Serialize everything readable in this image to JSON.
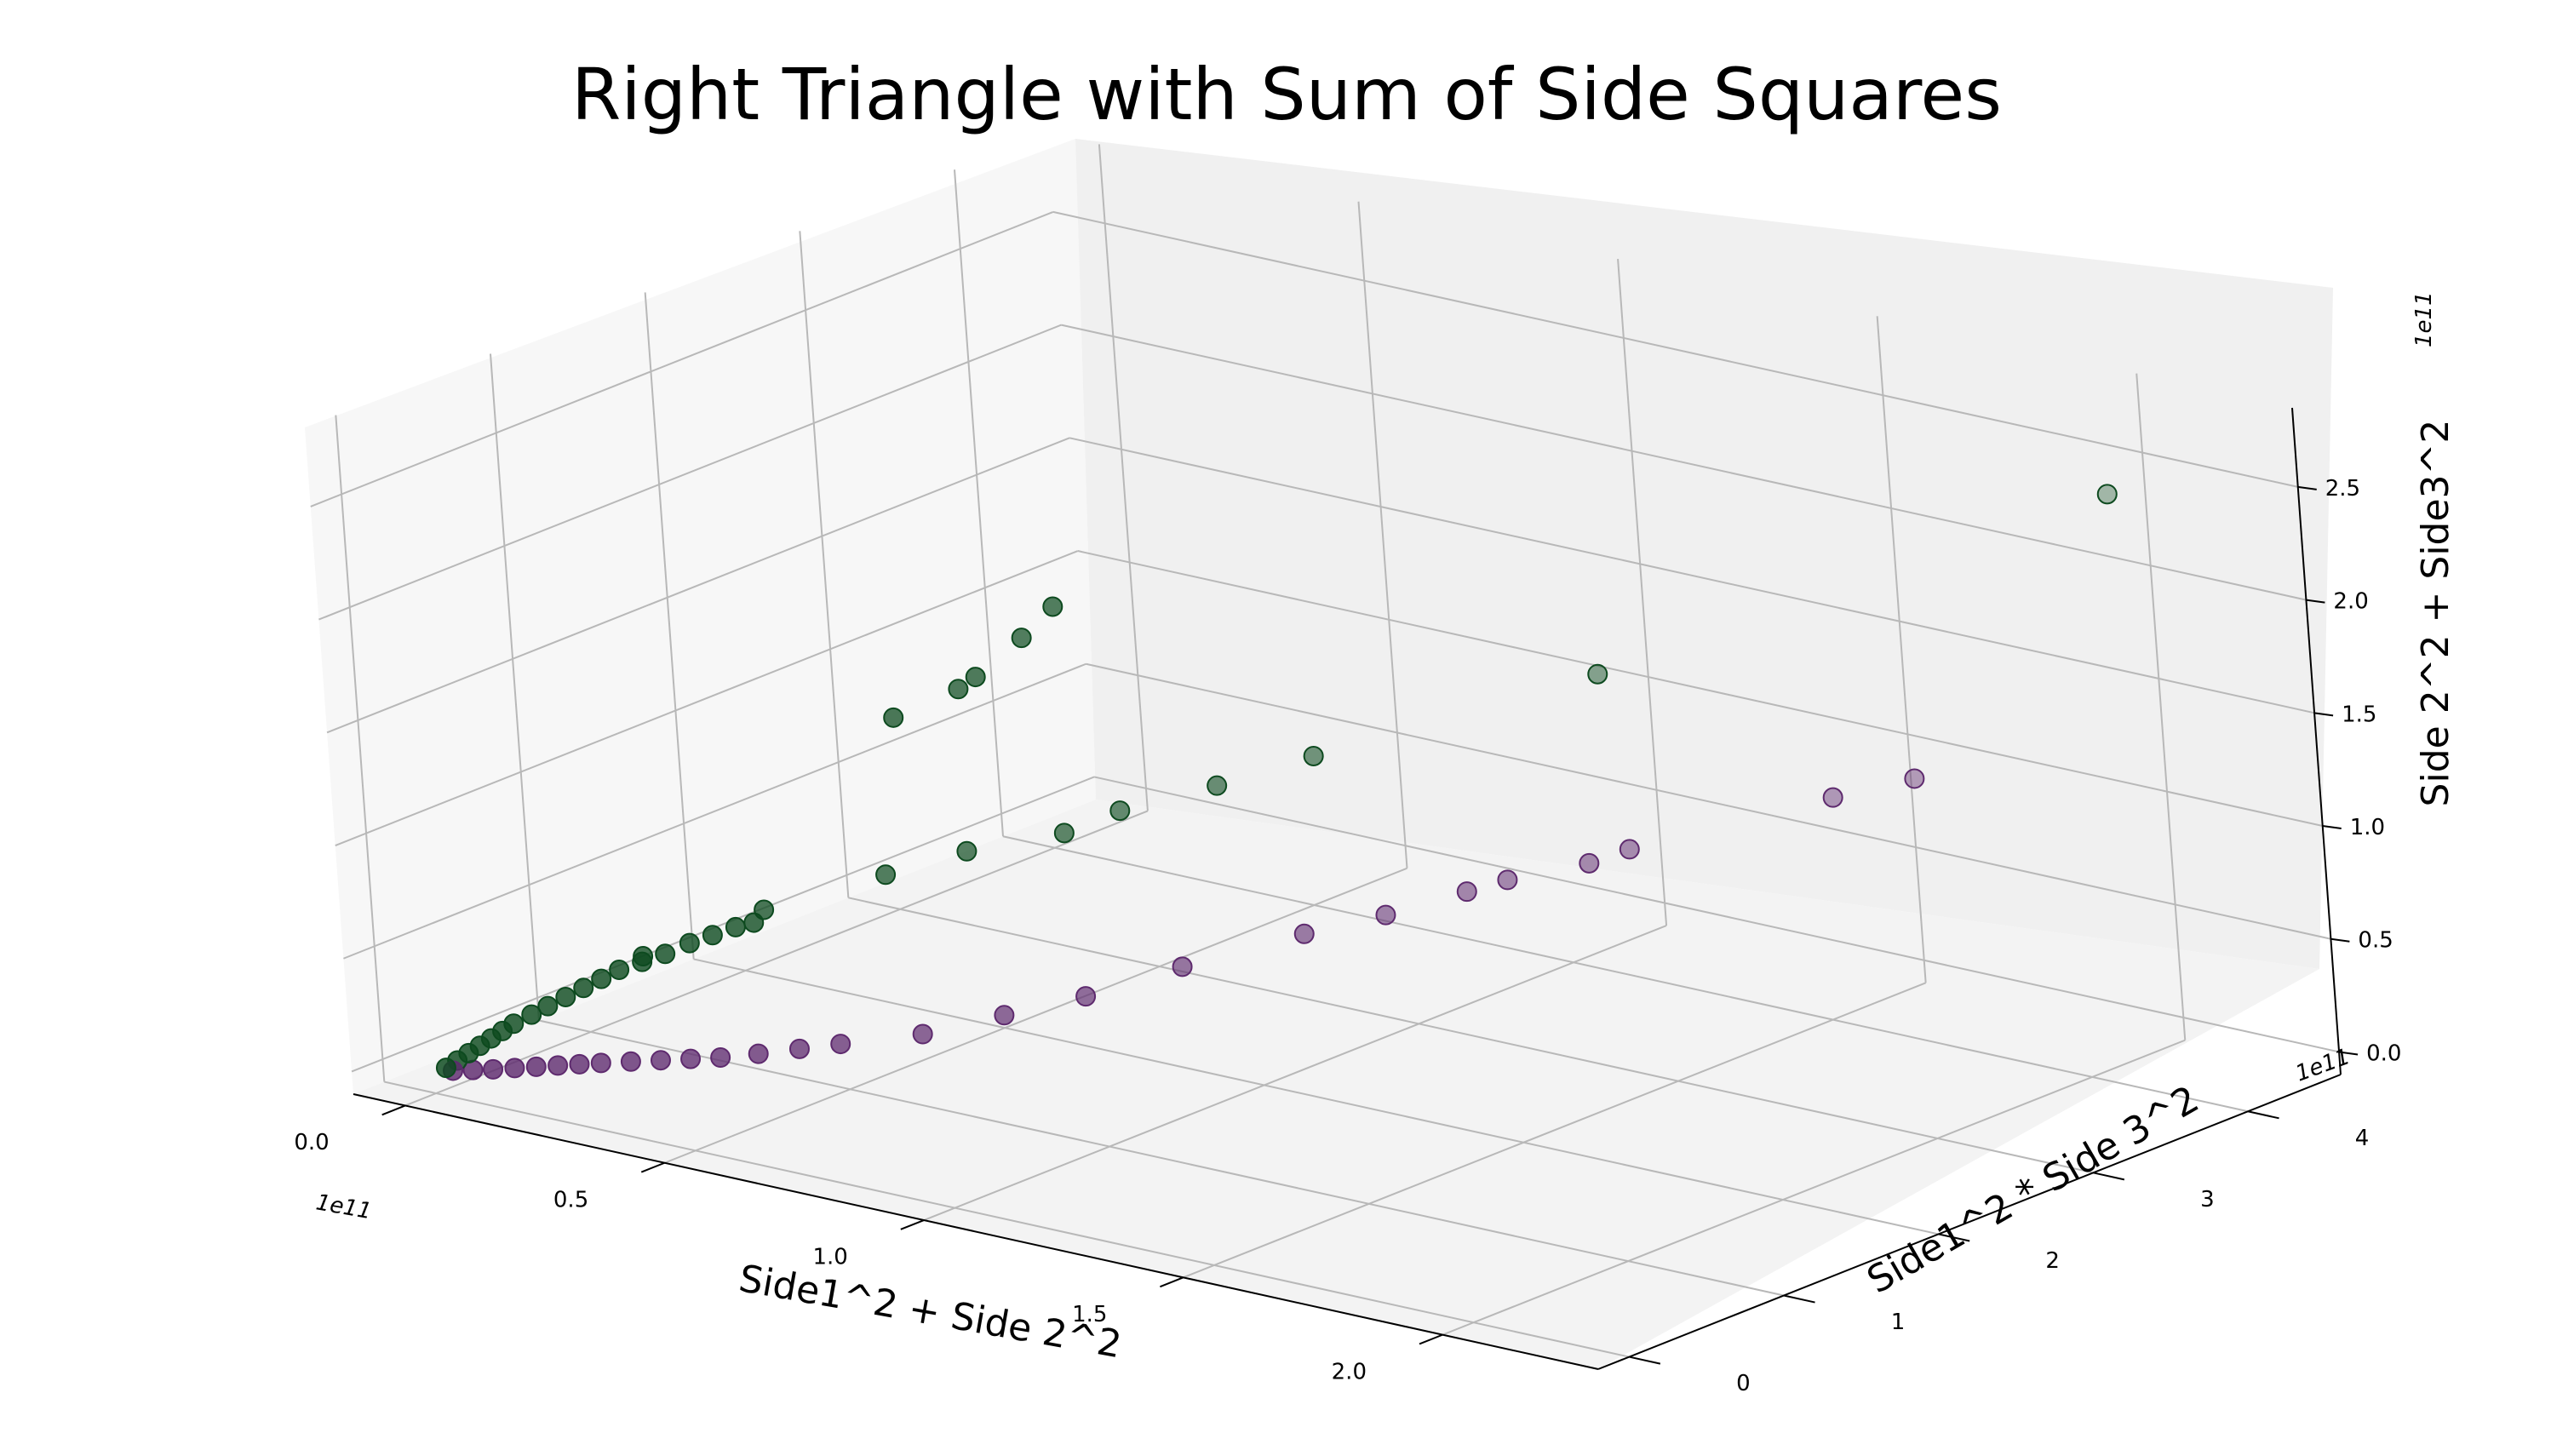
{
  "chart_data": {
    "type": "scatter",
    "title": "Right Triangle with Sum of Side Squares",
    "xlabel": "Side1^2 + Side 2^2",
    "ylabel": "Side1^2 * Side 3^2",
    "zlabel": "Side 2^2 + Side3^2",
    "x_offset": "1e11",
    "y_offset": "1e11",
    "z_offset": "1e11",
    "x_ticks": [
      "0.0",
      "0.5",
      "1.0",
      "1.5",
      "2.0"
    ],
    "y_ticks": [
      "0",
      "1",
      "2",
      "3",
      "4"
    ],
    "z_ticks": [
      "0.0",
      "0.5",
      "1.0",
      "1.5",
      "2.0",
      "2.5"
    ],
    "xlim": [
      -0.1,
      2.3
    ],
    "ylim": [
      -0.2,
      4.6
    ],
    "zlim": [
      -0.1,
      2.85
    ],
    "grid": true,
    "projection": "3d",
    "series": [
      {
        "color": "#0d4a1f",
        "points": [
          [
            0.02,
            0.01,
            0.02
          ],
          [
            0.04,
            0.02,
            0.06
          ],
          [
            0.06,
            0.03,
            0.1
          ],
          [
            0.08,
            0.04,
            0.14
          ],
          [
            0.1,
            0.05,
            0.18
          ],
          [
            0.12,
            0.06,
            0.22
          ],
          [
            0.14,
            0.07,
            0.26
          ],
          [
            0.17,
            0.09,
            0.31
          ],
          [
            0.2,
            0.1,
            0.36
          ],
          [
            0.23,
            0.12,
            0.41
          ],
          [
            0.26,
            0.14,
            0.46
          ],
          [
            0.29,
            0.16,
            0.51
          ],
          [
            0.32,
            0.18,
            0.56
          ],
          [
            0.36,
            0.2,
            0.61
          ],
          [
            0.4,
            0.22,
            0.66
          ],
          [
            0.44,
            0.25,
            0.72
          ],
          [
            0.48,
            0.27,
            0.77
          ],
          [
            0.52,
            0.29,
            0.82
          ],
          [
            0.55,
            0.31,
            0.85
          ],
          [
            0.3,
            0.4,
            0.55
          ],
          [
            0.45,
            0.7,
            0.75
          ],
          [
            0.6,
            1.0,
            0.9
          ],
          [
            0.7,
            1.2,
            1.0
          ],
          [
            0.8,
            1.5,
            1.05
          ],
          [
            0.85,
            1.7,
            1.12
          ],
          [
            0.95,
            2.0,
            1.2
          ],
          [
            1.05,
            2.3,
            1.3
          ],
          [
            1.4,
            3.0,
            1.65
          ],
          [
            2.05,
            4.2,
            2.45
          ],
          [
            0.7,
            0.8,
            1.7
          ],
          [
            0.8,
            0.9,
            1.85
          ],
          [
            0.82,
            0.95,
            1.9
          ],
          [
            0.9,
            1.0,
            2.1
          ],
          [
            0.95,
            1.05,
            2.25
          ]
        ]
      },
      {
        "color": "#5e2a6e",
        "points": [
          [
            0.03,
            0.02,
            0.01
          ],
          [
            0.06,
            0.05,
            0.02
          ],
          [
            0.09,
            0.08,
            0.03
          ],
          [
            0.12,
            0.12,
            0.04
          ],
          [
            0.15,
            0.16,
            0.05
          ],
          [
            0.18,
            0.2,
            0.06
          ],
          [
            0.21,
            0.24,
            0.07
          ],
          [
            0.24,
            0.28,
            0.08
          ],
          [
            0.28,
            0.34,
            0.09
          ],
          [
            0.32,
            0.4,
            0.1
          ],
          [
            0.36,
            0.46,
            0.11
          ],
          [
            0.4,
            0.52,
            0.12
          ],
          [
            0.45,
            0.6,
            0.14
          ],
          [
            0.5,
            0.7,
            0.16
          ],
          [
            0.55,
            0.8,
            0.18
          ],
          [
            0.65,
            1.0,
            0.22
          ],
          [
            0.75,
            1.2,
            0.3
          ],
          [
            0.85,
            1.4,
            0.38
          ],
          [
            0.95,
            1.7,
            0.48
          ],
          [
            1.1,
            2.0,
            0.62
          ],
          [
            1.2,
            2.2,
            0.7
          ],
          [
            1.3,
            2.4,
            0.8
          ],
          [
            1.35,
            2.5,
            0.85
          ],
          [
            1.45,
            2.7,
            0.92
          ],
          [
            1.5,
            2.8,
            0.98
          ],
          [
            1.75,
            3.3,
            1.2
          ],
          [
            1.85,
            3.5,
            1.28
          ]
        ]
      }
    ]
  }
}
